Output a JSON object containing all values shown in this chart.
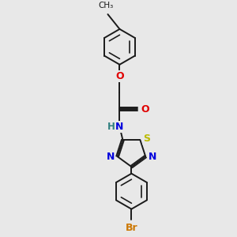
{
  "background_color": "#e8e8e8",
  "bond_color": "#1a1a1a",
  "bond_width": 1.4,
  "atom_colors": {
    "O": "#e00000",
    "N": "#0000dd",
    "S": "#bbbb00",
    "Br": "#cc7700",
    "C": "#1a1a1a",
    "H": "#308080"
  },
  "figsize": [
    3.0,
    3.0
  ],
  "dpi": 100
}
